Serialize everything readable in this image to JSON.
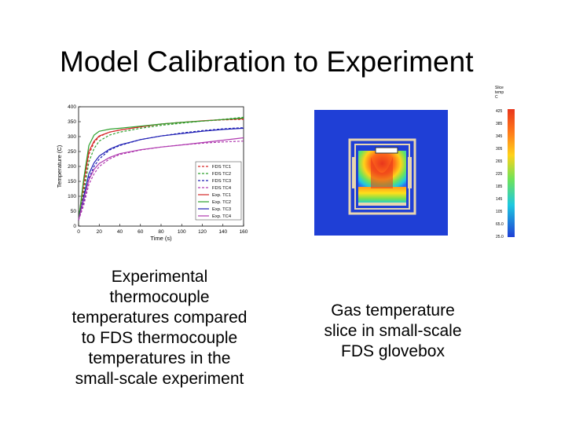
{
  "slide": {
    "title": "Model Calibration to Experiment",
    "caption_left": [
      "Experimental",
      "thermocouple",
      "temperatures compared",
      "to FDS thermocouple",
      "temperatures in the",
      "small-scale experiment"
    ],
    "caption_right": [
      "Gas temperature",
      "slice in small-scale",
      "FDS glovebox"
    ]
  },
  "chart_data": [
    {
      "type": "line",
      "xlabel": "Time (s)",
      "ylabel": "Temperature (C)",
      "xlim": [
        0,
        160
      ],
      "ylim": [
        0,
        400
      ],
      "xticks": [
        0,
        20,
        40,
        60,
        80,
        100,
        120,
        140,
        160
      ],
      "yticks": [
        0,
        50,
        100,
        150,
        200,
        250,
        300,
        350,
        400
      ],
      "grid": false,
      "legend_position": "lower-right",
      "x": [
        0,
        5,
        10,
        15,
        20,
        30,
        40,
        60,
        80,
        100,
        120,
        140,
        160
      ],
      "series": [
        {
          "name": "FDS TC1",
          "color": "#d62728",
          "style": "dashed",
          "values": [
            20,
            130,
            240,
            280,
            300,
            315,
            322,
            332,
            342,
            348,
            352,
            356,
            358
          ]
        },
        {
          "name": "FDS TC2",
          "color": "#2ca02c",
          "style": "dashed",
          "values": [
            20,
            110,
            215,
            260,
            285,
            305,
            315,
            328,
            338,
            345,
            352,
            358,
            365
          ]
        },
        {
          "name": "FDS TC3",
          "color": "#1f1fb4",
          "style": "dashed",
          "values": [
            20,
            80,
            160,
            200,
            225,
            255,
            270,
            290,
            302,
            312,
            320,
            326,
            330
          ]
        },
        {
          "name": "FDS TC4",
          "color": "#b03ab0",
          "style": "dashed",
          "values": [
            20,
            70,
            140,
            175,
            200,
            225,
            240,
            255,
            265,
            272,
            278,
            282,
            285
          ]
        },
        {
          "name": "Exp. TC1",
          "color": "#d62728",
          "style": "solid",
          "values": [
            20,
            150,
            250,
            285,
            302,
            315,
            322,
            333,
            342,
            348,
            353,
            357,
            360
          ]
        },
        {
          "name": "Exp. TC2",
          "color": "#2ca02c",
          "style": "solid",
          "values": [
            20,
            160,
            270,
            305,
            318,
            325,
            328,
            335,
            342,
            348,
            352,
            357,
            362
          ]
        },
        {
          "name": "Exp. TC3",
          "color": "#1f1fb4",
          "style": "solid",
          "values": [
            20,
            100,
            175,
            212,
            235,
            258,
            272,
            290,
            302,
            310,
            318,
            324,
            328
          ]
        },
        {
          "name": "Exp. TC4",
          "color": "#b03ab0",
          "style": "solid",
          "values": [
            20,
            90,
            155,
            190,
            210,
            230,
            243,
            256,
            265,
            272,
            280,
            288,
            296
          ]
        }
      ]
    },
    {
      "type": "heatmap",
      "colorbar_title": [
        "Slice",
        "temp",
        "C"
      ],
      "colorbar_ticks": [
        "425",
        "385",
        "345",
        "305",
        "265",
        "225",
        "185",
        "145",
        "105",
        "65.0",
        "25.0"
      ],
      "colors": {
        "background": "#1f3fd6",
        "high": "#e8361c",
        "low": "#1f3fd6"
      }
    }
  ]
}
